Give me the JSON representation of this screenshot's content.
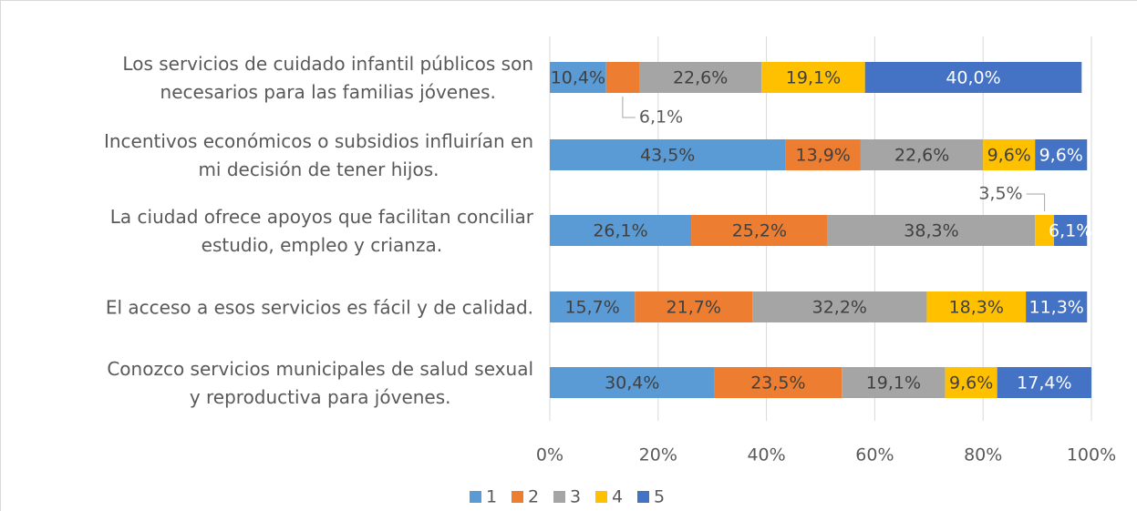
{
  "chart_data": {
    "type": "stacked_barh",
    "categories": [
      "Los servicios de cuidado infantil públicos son\nnecesarios para las familias jóvenes.",
      "Incentivos económicos o subsidios influirían en\nmi decisión de tener hijos.",
      "La ciudad ofrece apoyos que facilitan conciliar\nestudio, empleo y crianza.",
      "El acceso a esos servicios es fácil y de calidad.",
      "Conozco servicios municipales de salud sexual\ny reproductiva para jóvenes."
    ],
    "series": [
      {
        "name": "1",
        "color": "#5b9bd5",
        "values": [
          10.4,
          43.5,
          26.1,
          15.7,
          30.4
        ],
        "value_labels": [
          "10,4%",
          "43,5%",
          "26,1%",
          "15,7%",
          "30,4%"
        ]
      },
      {
        "name": "2",
        "color": "#ed7d31",
        "values": [
          6.1,
          13.9,
          25.2,
          21.7,
          23.5
        ],
        "value_labels": [
          "6,1%",
          "13,9%",
          "25,2%",
          "21,7%",
          "23,5%"
        ]
      },
      {
        "name": "3",
        "color": "#a5a5a5",
        "values": [
          22.6,
          22.6,
          38.3,
          32.2,
          19.1
        ],
        "value_labels": [
          "22,6%",
          "22,6%",
          "38,3%",
          "32,2%",
          "19,1%"
        ]
      },
      {
        "name": "4",
        "color": "#ffc000",
        "values": [
          19.1,
          9.6,
          3.5,
          18.3,
          9.6
        ],
        "value_labels": [
          "19,1%",
          "9,6%",
          "3,5%",
          "18,3%",
          "9,6%"
        ]
      },
      {
        "name": "5",
        "color": "#4472c4",
        "values": [
          40.0,
          9.6,
          6.1,
          11.3,
          17.4
        ],
        "value_labels": [
          "40,0%",
          "9,6%",
          "6,1%",
          "11,3%",
          "17,4%"
        ]
      }
    ],
    "xlim": [
      0,
      100
    ],
    "xticks": [
      {
        "value": 0,
        "label": "0%"
      },
      {
        "value": 20,
        "label": "20%"
      },
      {
        "value": 40,
        "label": "40%"
      },
      {
        "value": 60,
        "label": "60%"
      },
      {
        "value": 80,
        "label": "80%"
      },
      {
        "value": 100,
        "label": "100%"
      }
    ],
    "grid": true,
    "legend": "bottom"
  }
}
